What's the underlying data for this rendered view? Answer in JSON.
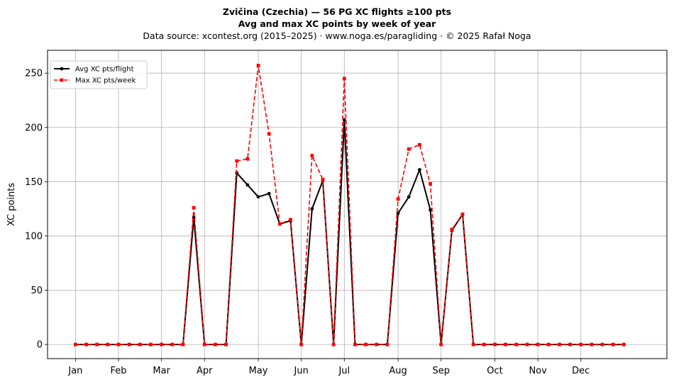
{
  "title_line1": "Zvičina (Czechia)  —  56 PG XC flights ≥100 pts",
  "title_line2": "Avg and max XC points by week of year",
  "subtitle": "Data source: xcontest.org (2015–2025)  ·  www.noga.es/paragliding  ·  © 2025 Rafał Noga",
  "chart_data": {
    "type": "line",
    "title": "Avg and max XC points by week of year",
    "xlabel": "",
    "ylabel": "XC points",
    "xlim": [
      -2.6,
      55
    ],
    "ylim": [
      -13,
      271
    ],
    "grid": true,
    "legend_position": "top-left",
    "x_ticks": [
      0,
      4,
      8,
      12,
      17,
      21,
      25,
      30,
      34,
      39,
      43,
      47
    ],
    "x_tick_labels": [
      "Jan",
      "Feb",
      "Mar",
      "Apr",
      "May",
      "Jun",
      "Jul",
      "Aug",
      "Sep",
      "Oct",
      "Nov",
      "Dec"
    ],
    "y_ticks": [
      0,
      50,
      100,
      150,
      200,
      250
    ],
    "x": [
      0,
      1,
      2,
      3,
      4,
      5,
      6,
      7,
      8,
      9,
      10,
      11,
      12,
      13,
      14,
      15,
      16,
      17,
      18,
      19,
      20,
      21,
      22,
      23,
      24,
      25,
      26,
      27,
      28,
      29,
      30,
      31,
      32,
      33,
      34,
      35,
      36,
      37,
      38,
      39,
      40,
      41,
      42,
      43,
      44,
      45,
      46,
      47,
      48,
      49,
      50,
      51
    ],
    "series": [
      {
        "name": "Avg XC pts/flight",
        "color": "#000000",
        "style": "solid",
        "marker": "circle",
        "values": [
          0,
          0,
          0,
          0,
          0,
          0,
          0,
          0,
          0,
          0,
          0,
          117,
          0,
          0,
          0,
          158,
          147,
          136,
          139,
          111,
          114,
          0,
          125,
          151,
          0,
          207,
          0,
          0,
          0,
          0,
          121,
          136,
          161,
          124,
          0,
          105,
          120,
          0,
          0,
          0,
          0,
          0,
          0,
          0,
          0,
          0,
          0,
          0,
          0,
          0,
          0,
          0
        ]
      },
      {
        "name": "Max XC pts/week",
        "color": "#ff0000",
        "style": "dashed",
        "marker": "square",
        "values": [
          0,
          0,
          0,
          0,
          0,
          0,
          0,
          0,
          0,
          0,
          0,
          126,
          0,
          0,
          0,
          169,
          171,
          257,
          194,
          111,
          115,
          0,
          174,
          152,
          0,
          245,
          0,
          0,
          0,
          0,
          134,
          180,
          184,
          148,
          0,
          106,
          120,
          0,
          0,
          0,
          0,
          0,
          0,
          0,
          0,
          0,
          0,
          0,
          0,
          0,
          0,
          0
        ]
      }
    ]
  }
}
